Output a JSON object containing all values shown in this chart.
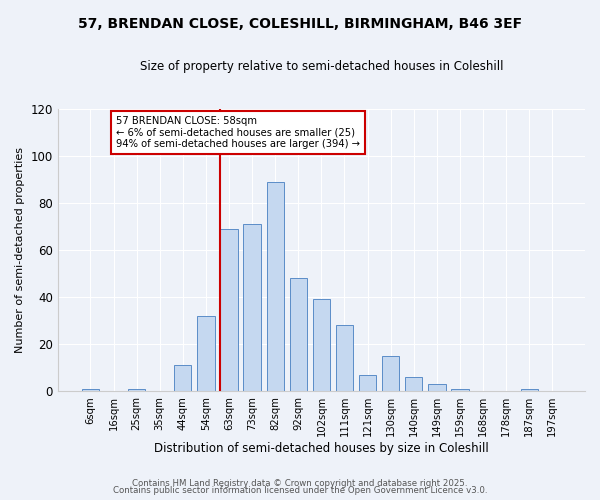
{
  "title1": "57, BRENDAN CLOSE, COLESHILL, BIRMINGHAM, B46 3EF",
  "title2": "Size of property relative to semi-detached houses in Coleshill",
  "xlabel": "Distribution of semi-detached houses by size in Coleshill",
  "ylabel": "Number of semi-detached properties",
  "property_label": "57 BRENDAN CLOSE: 58sqm",
  "pct_smaller": 6,
  "pct_larger": 94,
  "n_smaller": 25,
  "n_larger": 394,
  "bar_categories": [
    "6sqm",
    "16sqm",
    "25sqm",
    "35sqm",
    "44sqm",
    "54sqm",
    "63sqm",
    "73sqm",
    "82sqm",
    "92sqm",
    "102sqm",
    "111sqm",
    "121sqm",
    "130sqm",
    "140sqm",
    "149sqm",
    "159sqm",
    "168sqm",
    "178sqm",
    "187sqm",
    "197sqm"
  ],
  "bar_heights": [
    1,
    0,
    1,
    0,
    11,
    32,
    69,
    71,
    89,
    48,
    39,
    28,
    7,
    15,
    6,
    3,
    1,
    0,
    0,
    1,
    0
  ],
  "bar_color": "#c5d8f0",
  "bar_edge_color": "#5b8dc8",
  "red_line_color": "#cc0000",
  "annotation_box_color": "#cc0000",
  "ylim": [
    0,
    120
  ],
  "yticks": [
    0,
    20,
    40,
    60,
    80,
    100,
    120
  ],
  "background_color": "#eef2f9",
  "grid_color": "#ffffff",
  "footer1": "Contains HM Land Registry data © Crown copyright and database right 2025.",
  "footer2": "Contains public sector information licensed under the Open Government Licence v3.0."
}
